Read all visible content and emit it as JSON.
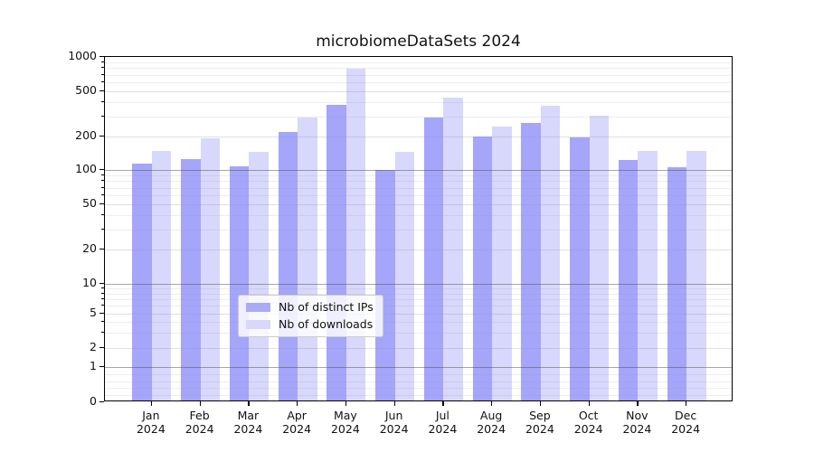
{
  "title": "microbiomeDataSets 2024",
  "legend": {
    "items": [
      {
        "label": "Nb of distinct IPs",
        "color": "#aaaaf8"
      },
      {
        "label": "Nb of downloads",
        "color": "#d8d8f8"
      }
    ]
  },
  "chart_data": {
    "type": "bar",
    "title": "microbiomeDataSets 2024",
    "scale": "symlog",
    "categories": [
      "Jan",
      "Feb",
      "Mar",
      "Apr",
      "May",
      "Jun",
      "Jul",
      "Aug",
      "Sep",
      "Oct",
      "Nov",
      "Dec"
    ],
    "year_label": "2024",
    "series": [
      {
        "name": "Nb of distinct IPs",
        "color": "#aaaaf8",
        "values": [
          110,
          120,
          103,
          210,
          365,
          96,
          285,
          193,
          255,
          188,
          118,
          101
        ]
      },
      {
        "name": "Nb of downloads",
        "color": "#d8d8f8",
        "values": [
          143,
          186,
          140,
          285,
          760,
          140,
          425,
          236,
          362,
          295,
          142,
          143
        ]
      }
    ],
    "y_ticks": [
      0,
      1,
      2,
      5,
      10,
      20,
      50,
      100,
      200,
      500,
      1000
    ],
    "ylim": [
      0,
      1000
    ],
    "xlabel": "",
    "ylabel": "",
    "grid": "on",
    "legend_position": "lower center"
  }
}
